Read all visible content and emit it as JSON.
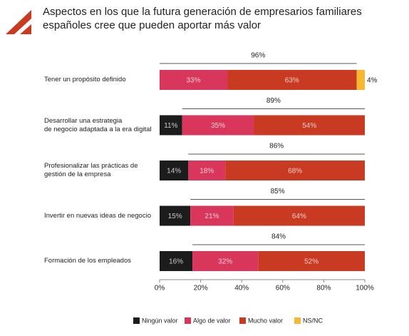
{
  "chart_data": {
    "type": "stacked-bar-horizontal",
    "title": "Aspectos en los que la futura generación de empresarios familiares\nespañoles cree que pueden aportar más valor",
    "categories": [
      "Tener un propósito definido",
      "Desarrollar una estrategia\nde negocio adaptada a la era digital",
      "Profesionalizar las prácticas de\ngestión de la empresa",
      "Invertir en nuevas ideas de negocio",
      "Formación de los empleados"
    ],
    "series": [
      {
        "name": "Ningún valor",
        "color": "#1c1c1c",
        "values": [
          null,
          11,
          14,
          15,
          16
        ],
        "value_labels": [
          null,
          "11%",
          "14%",
          "15%",
          "16%"
        ]
      },
      {
        "name": "Algo de valor",
        "color": "#d8375b",
        "values": [
          33,
          35,
          18,
          21,
          32
        ],
        "value_labels": [
          "33%",
          "35%",
          "18%",
          "21%",
          "32%"
        ]
      },
      {
        "name": "Mucho valor",
        "color": "#c93a22",
        "values": [
          63,
          54,
          68,
          64,
          52
        ],
        "value_labels": [
          "63%",
          "54%",
          "68%",
          "64%",
          "52%"
        ]
      },
      {
        "name": "NS/NC",
        "color": "#f6b731",
        "values": [
          4,
          null,
          null,
          null,
          null
        ],
        "value_labels": [
          "4%",
          null,
          null,
          null,
          null
        ]
      }
    ],
    "totals": {
      "values": [
        96,
        89,
        86,
        85,
        84
      ],
      "value_labels": [
        "96%",
        "89%",
        "86%",
        "85%",
        "84%"
      ]
    },
    "xlim": [
      0,
      100
    ],
    "xticks": [
      {
        "value": 0,
        "label": "0%"
      },
      {
        "value": 20,
        "label": "20%"
      },
      {
        "value": 40,
        "label": "40%"
      },
      {
        "value": 60,
        "label": "60%"
      },
      {
        "value": 80,
        "label": "80%"
      },
      {
        "value": 100,
        "label": "100%"
      }
    ]
  }
}
